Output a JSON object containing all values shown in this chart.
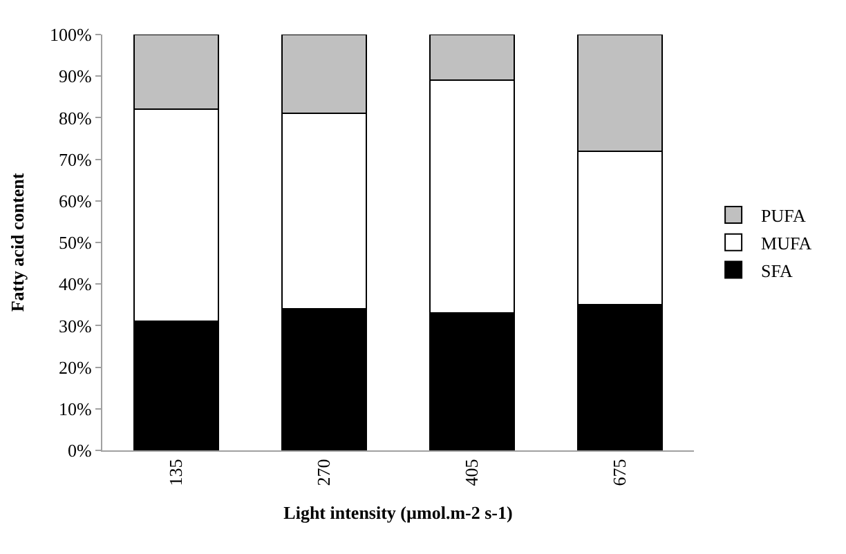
{
  "chart_data": {
    "type": "bar",
    "stacked": true,
    "xlabel": "Light intensity (µmol.m-2 s-1)",
    "ylabel": "Fatty acid content",
    "categories": [
      "135",
      "270",
      "405",
      "675"
    ],
    "series": [
      {
        "name": "SFA",
        "color": "#000000",
        "values": [
          31,
          34,
          33,
          35
        ]
      },
      {
        "name": "MUFA",
        "color": "#ffffff",
        "values": [
          51,
          47,
          56,
          37
        ]
      },
      {
        "name": "PUFA",
        "color": "#c0c0c0",
        "values": [
          18,
          19,
          11,
          28
        ]
      }
    ],
    "ylim": [
      0,
      100
    ],
    "yticks": [
      {
        "value": 0,
        "label": "0%"
      },
      {
        "value": 10,
        "label": "10%"
      },
      {
        "value": 20,
        "label": "20%"
      },
      {
        "value": 30,
        "label": "30%"
      },
      {
        "value": 40,
        "label": "40%"
      },
      {
        "value": 50,
        "label": "50%"
      },
      {
        "value": 60,
        "label": "60%"
      },
      {
        "value": 70,
        "label": "70%"
      },
      {
        "value": 80,
        "label": "80%"
      },
      {
        "value": 90,
        "label": "90%"
      },
      {
        "value": 100,
        "label": "100%"
      }
    ],
    "legend": "right"
  }
}
